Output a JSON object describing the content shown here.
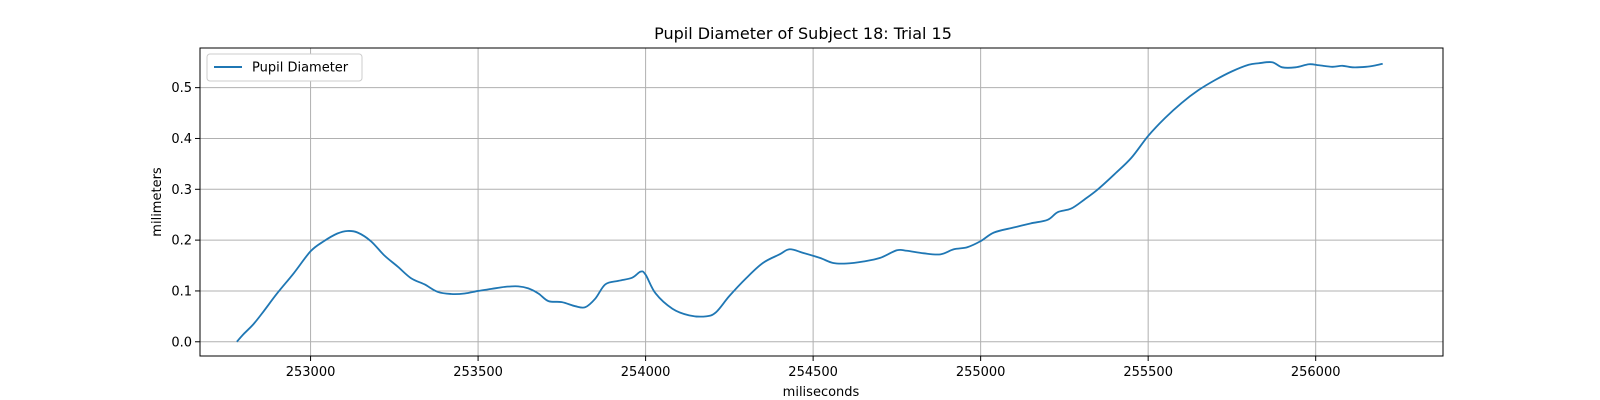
{
  "chart_data": {
    "type": "line",
    "title": "Pupil Diameter of Subject 18: Trial 15",
    "xlabel": "miliseconds",
    "ylabel": "milimeters",
    "xlim": [
      252670,
      256380
    ],
    "ylim": [
      -0.028,
      0.578
    ],
    "xticks": [
      253000,
      253500,
      254000,
      254500,
      255000,
      255500,
      256000
    ],
    "yticks": [
      0.0,
      0.1,
      0.2,
      0.3,
      0.4,
      0.5
    ],
    "xtick_labels": [
      "253000",
      "253500",
      "254000",
      "254500",
      "255000",
      "255500",
      "256000"
    ],
    "ytick_labels": [
      "0.0",
      "0.1",
      "0.2",
      "0.3",
      "0.4",
      "0.5"
    ],
    "grid": true,
    "legend_position": "top-left",
    "series": [
      {
        "name": "Pupil Diameter",
        "color": "#1f77b4",
        "x": [
          252780,
          252800,
          252830,
          252860,
          252900,
          252950,
          253000,
          253040,
          253080,
          253110,
          253140,
          253180,
          253220,
          253260,
          253300,
          253340,
          253380,
          253420,
          253460,
          253500,
          253540,
          253580,
          253620,
          253650,
          253680,
          253710,
          253750,
          253790,
          253820,
          253850,
          253880,
          253920,
          253960,
          253985,
          254000,
          254030,
          254080,
          254130,
          254180,
          254210,
          254250,
          254300,
          254350,
          254400,
          254430,
          254470,
          254520,
          254560,
          254600,
          254650,
          254700,
          254750,
          254780,
          254830,
          254880,
          254920,
          254960,
          255000,
          255040,
          255100,
          255150,
          255200,
          255230,
          255270,
          255310,
          255350,
          255400,
          255450,
          255500,
          255550,
          255600,
          255650,
          255700,
          255750,
          255800,
          255830,
          255870,
          255900,
          255940,
          255980,
          256010,
          256050,
          256080,
          256110,
          256150,
          256180,
          256200
        ],
        "y": [
          0.0,
          0.015,
          0.035,
          0.06,
          0.095,
          0.135,
          0.178,
          0.198,
          0.213,
          0.218,
          0.215,
          0.198,
          0.17,
          0.148,
          0.125,
          0.113,
          0.098,
          0.094,
          0.095,
          0.1,
          0.104,
          0.108,
          0.109,
          0.105,
          0.095,
          0.08,
          0.078,
          0.07,
          0.068,
          0.085,
          0.113,
          0.12,
          0.126,
          0.138,
          0.132,
          0.095,
          0.065,
          0.052,
          0.05,
          0.058,
          0.09,
          0.125,
          0.155,
          0.172,
          0.182,
          0.175,
          0.165,
          0.155,
          0.154,
          0.158,
          0.165,
          0.18,
          0.179,
          0.174,
          0.172,
          0.182,
          0.186,
          0.198,
          0.215,
          0.225,
          0.233,
          0.24,
          0.255,
          0.262,
          0.28,
          0.3,
          0.33,
          0.362,
          0.405,
          0.44,
          0.47,
          0.495,
          0.515,
          0.532,
          0.545,
          0.548,
          0.55,
          0.54,
          0.54,
          0.546,
          0.544,
          0.541,
          0.543,
          0.54,
          0.541,
          0.544,
          0.547
        ]
      }
    ]
  }
}
